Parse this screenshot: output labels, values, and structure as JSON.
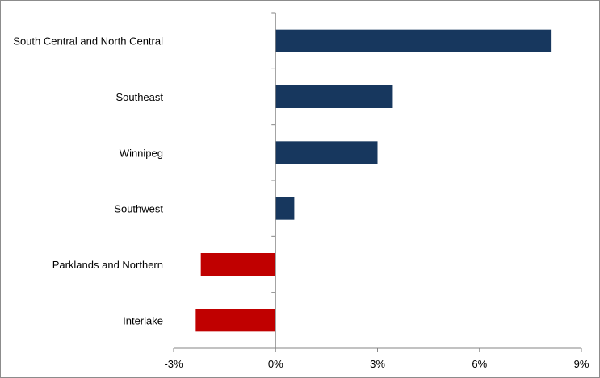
{
  "chart_data": {
    "type": "bar",
    "orientation": "horizontal",
    "categories": [
      "South Central and North Central",
      "Southeast",
      "Winnipeg",
      "Southwest",
      "Parklands and Northern",
      "Interlake"
    ],
    "values": [
      8.1,
      3.45,
      3.0,
      0.55,
      -2.2,
      -2.35
    ],
    "xlim": [
      -3,
      9
    ],
    "xticks": [
      -3,
      0,
      3,
      6,
      9
    ],
    "tick_labels": [
      "-3%",
      "0%",
      "3%",
      "6%",
      "9%"
    ],
    "title": "",
    "xlabel": "",
    "ylabel": "",
    "grid": false,
    "colors": {
      "positive": "#17375e",
      "negative": "#c00000",
      "axis": "#868686"
    }
  }
}
